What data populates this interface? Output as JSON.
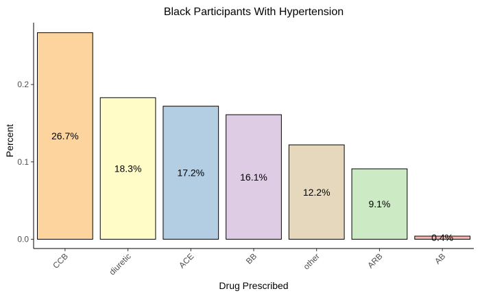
{
  "chart_data": {
    "type": "bar",
    "title": "Black Participants With Hypertension",
    "xlabel": "Drug Prescribed",
    "ylabel": "Percent",
    "categories": [
      "CCB",
      "diuretic",
      "ACE",
      "BB",
      "other",
      "ARB",
      "AB"
    ],
    "values": [
      0.267,
      0.183,
      0.172,
      0.161,
      0.122,
      0.091,
      0.004
    ],
    "data_labels": [
      "26.7%",
      "18.3%",
      "17.2%",
      "16.1%",
      "12.2%",
      "9.1%",
      "0.4%"
    ],
    "bar_colors": [
      "#FDD49E",
      "#FFFCC8",
      "#B3CDE3",
      "#DECBE4",
      "#E5D8BD",
      "#CCEBC5",
      "#FBB4AE"
    ],
    "yticks": [
      0,
      0.1,
      0.2
    ],
    "ytick_labels": [
      "0.0",
      "0.1",
      "0.2"
    ],
    "ylim": [
      -0.012,
      0.28
    ],
    "grid": false,
    "legend": "none"
  }
}
